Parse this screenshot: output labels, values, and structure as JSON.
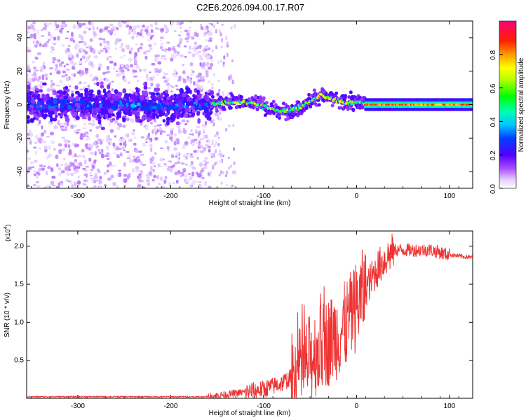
{
  "title": "C2E6.2026.094.00.17.R07",
  "chart_data": [
    {
      "type": "heatmap",
      "xlabel": "Height of straight line (km)",
      "ylabel": "Frequency (Hz)",
      "xlim": [
        -355,
        125
      ],
      "ylim": [
        -50,
        50
      ],
      "xticks": [
        -300,
        -200,
        -100,
        0,
        100
      ],
      "yticks": [
        -40,
        -20,
        0,
        20,
        40
      ],
      "colorbar": {
        "label": "Normalized spectral amplitude",
        "range": [
          0,
          1
        ],
        "ticks": [
          0.0,
          0.2,
          0.4,
          0.6,
          0.8
        ],
        "tick_labels": [
          "0.0",
          "0.2",
          "0.4",
          "0.6",
          "0.8"
        ]
      },
      "features": {
        "noisy_region_end_km": -155,
        "tone_start_km": 10,
        "tone_frequency_hz": 0,
        "drift_track": [
          [
            -160,
            0
          ],
          [
            -130,
            2
          ],
          [
            -110,
            1
          ],
          [
            -95,
            -2
          ],
          [
            -80,
            -4
          ],
          [
            -65,
            -3
          ],
          [
            -50,
            2
          ],
          [
            -38,
            6
          ],
          [
            -25,
            3
          ],
          [
            -12,
            1
          ],
          [
            0,
            1.5
          ],
          [
            10,
            0.5
          ]
        ]
      }
    },
    {
      "type": "line",
      "xlabel": "Height of straight line (km)",
      "ylabel": "SNR (10 * v/v)",
      "y_multiplier_label": "(x10",
      "y_multiplier_exp": "4",
      "y_multiplier_close": ")",
      "xlim": [
        -355,
        125
      ],
      "ylim": [
        0,
        2.2
      ],
      "xticks": [
        -300,
        -200,
        -100,
        0,
        100
      ],
      "yticks": [
        0.5,
        1.0,
        1.5,
        2.0
      ],
      "ytick_labels": [
        "0.5",
        "1.0",
        "1.5",
        "2.0"
      ],
      "series": [
        {
          "name": "SNR",
          "color": "#ee3333",
          "envelope": [
            [
              -355,
              0.02
            ],
            [
              -200,
              0.02
            ],
            [
              -160,
              0.02
            ],
            [
              -140,
              0.05
            ],
            [
              -120,
              0.08
            ],
            [
              -100,
              0.12
            ],
            [
              -80,
              0.2
            ],
            [
              -60,
              0.35
            ],
            [
              -45,
              0.6
            ],
            [
              -30,
              0.75
            ],
            [
              -15,
              0.9
            ],
            [
              -5,
              1.1
            ],
            [
              10,
              1.45
            ],
            [
              25,
              1.75
            ],
            [
              40,
              1.95
            ],
            [
              60,
              1.95
            ],
            [
              80,
              1.95
            ],
            [
              95,
              1.9
            ],
            [
              110,
              1.87
            ],
            [
              125,
              1.85
            ]
          ]
        }
      ]
    }
  ]
}
